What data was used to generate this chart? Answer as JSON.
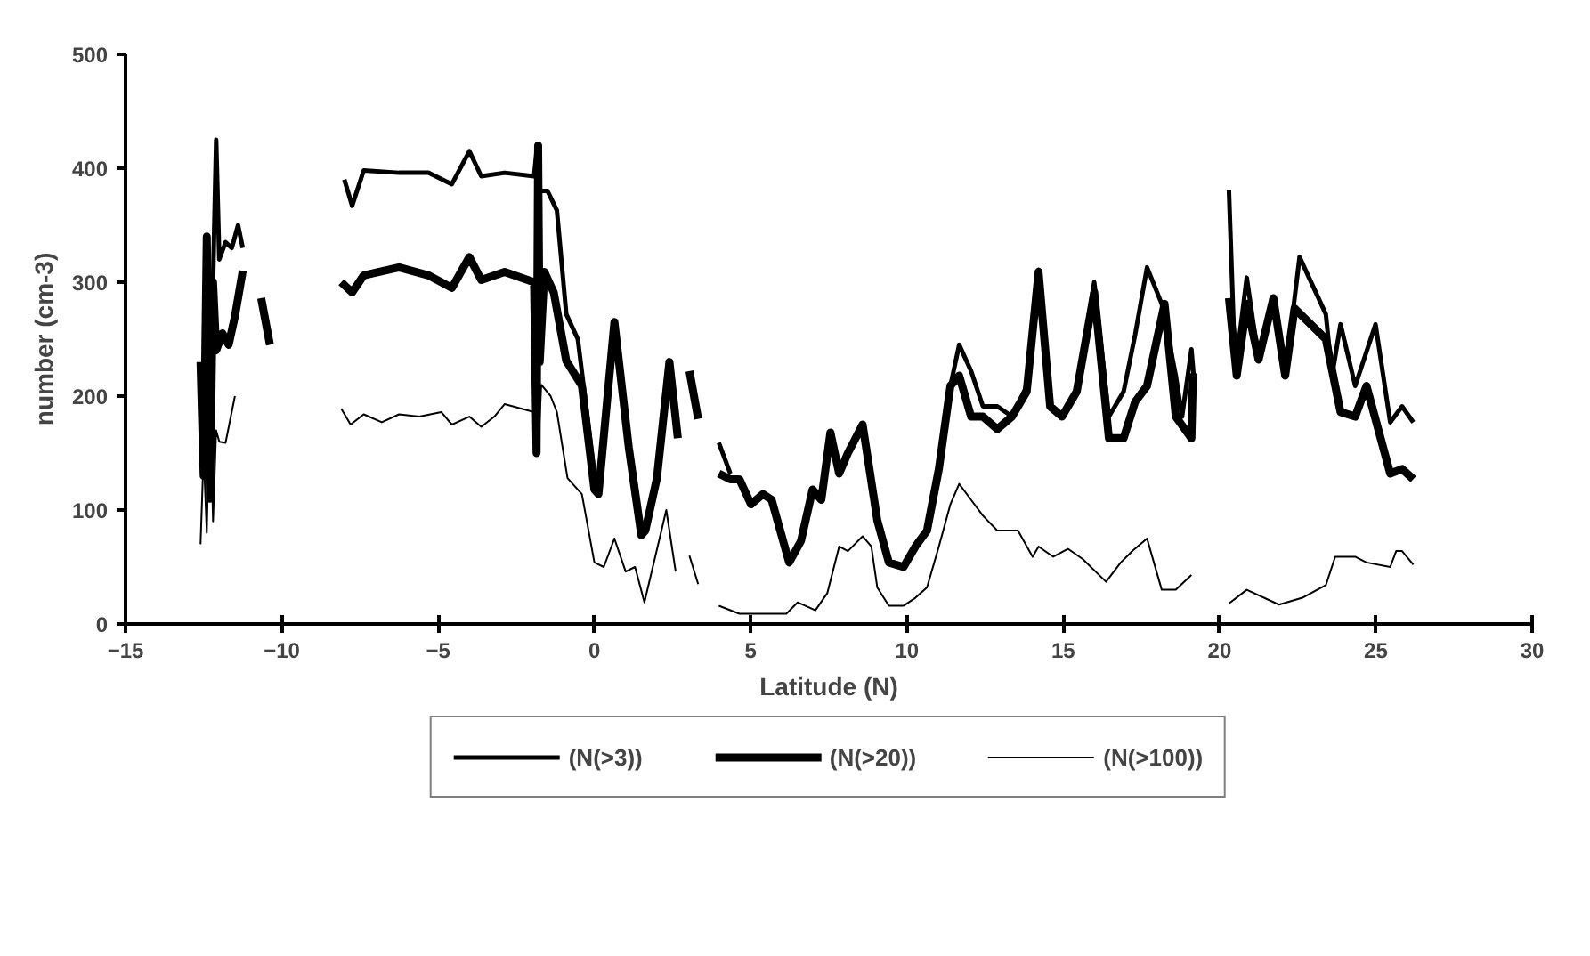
{
  "chart_data": {
    "type": "line",
    "xlabel": "Latitude (N)",
    "ylabel": "number (cm-3)",
    "xlim": [
      -15,
      30
    ],
    "xticks": [
      -15,
      -10,
      -5,
      0,
      5,
      10,
      15,
      20,
      25,
      30
    ],
    "ylim": [
      0,
      500
    ],
    "yticks": [
      0,
      100,
      200,
      300,
      400,
      500
    ],
    "grid": false,
    "legend": "bottom",
    "line_style": "solid",
    "series": [
      {
        "name": "(N(>3))",
        "color": "#000000",
        "x": [
          -12.2,
          -12.1,
          -12.0,
          -11.8,
          -11.6,
          -11.4,
          -11.25,
          -11.0,
          -8.0,
          -7.75,
          -7.38,
          -6.25,
          -5.31,
          -4.56,
          -4.0,
          -3.62,
          -2.87,
          -1.93,
          -1.85,
          -1.8,
          -1.5,
          -1.2,
          -0.9,
          -0.53,
          0.0,
          0.13,
          0.64,
          0.9,
          3.98,
          4.35,
          4.64,
          11.02,
          11.39,
          11.67,
          12.05,
          12.43,
          12.89,
          13.36,
          13.83,
          14.21,
          14.58,
          14.96,
          15.43,
          15.99,
          16.46,
          16.93,
          17.3,
          17.68,
          18.15,
          18.6,
          18.8,
          19.1,
          19.2,
          19.8,
          20.3,
          20.5,
          20.87,
          21.25,
          21.72,
          22.1,
          22.56,
          23.4,
          23.6,
          23.87,
          24.34,
          24.99,
          25.46,
          25.84,
          26.2
        ],
        "values": [
          300,
          425,
          320,
          335,
          330,
          350,
          330,
          null,
          390,
          367,
          398,
          396,
          396,
          386,
          415,
          393,
          396,
          393,
          415,
          380,
          380,
          363,
          272,
          250,
          132,
          128,
          265,
          null,
          159,
          132,
          null,
          136,
          209,
          245,
          222,
          191,
          191,
          182,
          209,
          311,
          191,
          182,
          204,
          300,
          182,
          204,
          254,
          313,
          281,
          218,
          182,
          241,
          209,
          null,
          381,
          222,
          304,
          232,
          286,
          218,
          322,
          272,
          218,
          263,
          209,
          263,
          177,
          191,
          177
        ]
      },
      {
        "name": "(N(>20))",
        "color": "#000000",
        "x": [
          -12.6,
          -12.5,
          -12.4,
          -12.3,
          -12.2,
          -12.1,
          -11.9,
          -11.7,
          -11.5,
          -11.25,
          -11.0,
          -10.66,
          -10.38,
          -9.0,
          -8.1,
          -7.75,
          -7.38,
          -6.25,
          -5.31,
          -4.56,
          -4.0,
          -3.62,
          -2.87,
          -1.93,
          -1.85,
          -1.8,
          -1.75,
          -1.6,
          -1.3,
          -0.9,
          -0.4,
          0.0,
          0.13,
          0.64,
          1.1,
          1.5,
          1.63,
          2.0,
          2.4,
          2.67,
          2.85,
          3.04,
          3.32,
          3.6,
          3.98,
          4.35,
          4.64,
          5.01,
          5.39,
          5.67,
          6.23,
          6.61,
          6.98,
          7.26,
          7.55,
          7.83,
          8.11,
          8.58,
          9.05,
          9.42,
          9.89,
          10.27,
          10.64,
          11.02,
          11.39,
          11.67,
          12.05,
          12.43,
          12.89,
          13.36,
          13.83,
          14.21,
          14.58,
          14.96,
          15.43,
          15.99,
          16.46,
          16.93,
          17.3,
          17.68,
          18.24,
          18.6,
          19.1,
          19.15,
          19.8,
          20.3,
          20.55,
          20.87,
          21.25,
          21.72,
          22.1,
          22.4,
          23.4,
          23.87,
          24.34,
          24.7,
          25.46,
          25.84,
          26.2
        ],
        "values": [
          230,
          130,
          340,
          110,
          300,
          240,
          255,
          245,
          270,
          310,
          null,
          286,
          245,
          null,
          300,
          291,
          306,
          313,
          306,
          295,
          322,
          302,
          309,
          300,
          150,
          420,
          230,
          309,
          291,
          231,
          209,
          118,
          114,
          265,
          155,
          78,
          82,
          128,
          230,
          163,
          null,
          222,
          180,
          null,
          132,
          127,
          127,
          105,
          114,
          109,
          54,
          73,
          118,
          109,
          168,
          132,
          150,
          175,
          91,
          54,
          50,
          68,
          82,
          136,
          209,
          218,
          182,
          182,
          171,
          182,
          204,
          309,
          191,
          182,
          204,
          291,
          163,
          163,
          195,
          209,
          281,
          182,
          163,
          220,
          null,
          286,
          218,
          281,
          232,
          286,
          218,
          277,
          250,
          186,
          182,
          209,
          132,
          136,
          127
        ]
      },
      {
        "name": "(N(>100))",
        "color": "#000000",
        "x": [
          -12.6,
          -12.5,
          -12.4,
          -12.3,
          -12.2,
          -12.1,
          -12.0,
          -11.8,
          -11.5,
          -11.0,
          -8.1,
          -7.8,
          -7.38,
          -6.8,
          -6.25,
          -5.6,
          -4.9,
          -4.56,
          -4.0,
          -3.62,
          -3.2,
          -2.87,
          -1.93,
          -1.85,
          -1.8,
          -1.7,
          -1.4,
          -1.2,
          -0.86,
          -0.4,
          0.0,
          0.3,
          0.64,
          1.0,
          1.3,
          1.6,
          2.3,
          2.6,
          2.85,
          3.04,
          3.32,
          3.6,
          3.98,
          4.64,
          5.39,
          6.14,
          6.5,
          7.07,
          7.45,
          7.83,
          8.11,
          8.58,
          8.86,
          9.05,
          9.42,
          9.89,
          10.27,
          10.64,
          11.02,
          11.39,
          11.67,
          12.05,
          12.43,
          12.89,
          13.55,
          14.02,
          14.21,
          14.68,
          15.15,
          15.62,
          16.37,
          16.84,
          17.21,
          17.68,
          18.15,
          18.6,
          19.1,
          19.8,
          20.3,
          20.87,
          21.9,
          22.65,
          23.4,
          23.7,
          24.34,
          24.7,
          25.46,
          25.65,
          25.84,
          26.2
        ],
        "values": [
          70,
          150,
          80,
          200,
          90,
          170,
          160,
          159,
          200,
          null,
          189,
          175,
          184,
          177,
          184,
          182,
          186,
          175,
          182,
          173,
          182,
          193,
          186,
          215,
          150,
          210,
          200,
          186,
          128,
          114,
          54,
          50,
          75,
          46,
          50,
          19,
          100,
          46,
          null,
          60,
          35,
          null,
          16,
          9,
          9,
          9,
          19,
          12,
          27,
          68,
          64,
          77,
          68,
          32,
          16,
          16,
          23,
          32,
          68,
          105,
          123,
          109,
          95,
          82,
          82,
          59,
          68,
          59,
          66,
          57,
          37,
          54,
          64,
          75,
          30,
          30,
          43,
          null,
          18,
          30,
          17,
          23,
          34,
          59,
          59,
          54,
          50,
          64,
          64,
          52
        ]
      }
    ]
  }
}
